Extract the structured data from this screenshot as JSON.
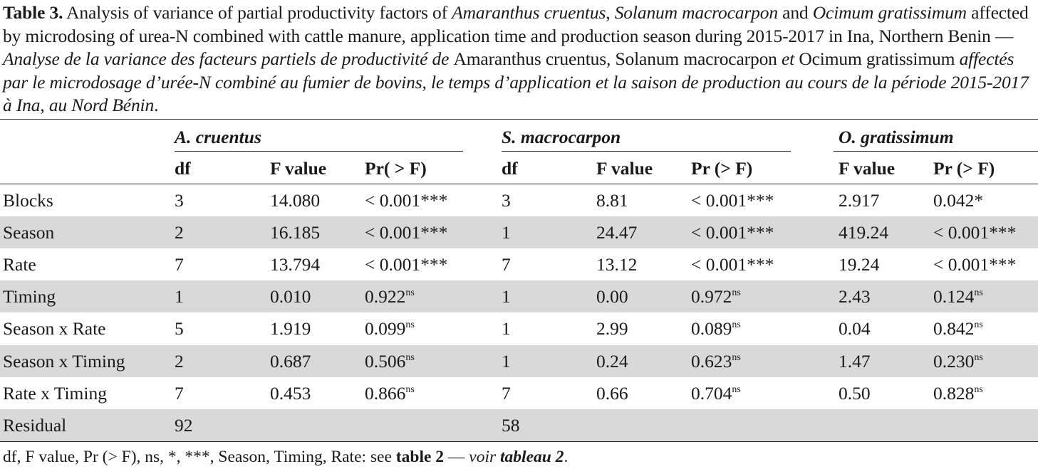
{
  "caption": {
    "label": "Table 3.",
    "en_1": " Analysis of variance of partial productivity factors of ",
    "sp_1": "Amaranthus cruentus",
    "en_2": ", ",
    "sp_2": "Solanum macrocarpon",
    "en_3": " and ",
    "sp_3": "Ocimum gratissimum",
    "en_4": " affected by microdosing of urea-N combined with cattle manure, application time and production season during 2015-2017 in Ina, Northern Benin",
    "sep": " — ",
    "fr_1": "Analyse de la variance des facteurs partiels de productivité de ",
    "fr_sp_1": "Amaranthus cruentus",
    "fr_2": ", ",
    "fr_sp_2": "Solanum macrocarpon",
    "fr_3": " et ",
    "fr_sp_3": "Ocimum gratissimum",
    "fr_4": " affectés par le microdosage d’urée-N combiné au fumier de bovins, le temps d’application et la saison de production au cours de la période 2015-2017 à Ina, au Nord Bénin",
    "end": "."
  },
  "groups": {
    "a": "A. cruentus",
    "s": "S. macrocarpon",
    "o": "O. gratissimum"
  },
  "columns": {
    "a_df": "df",
    "a_f": "F value",
    "a_p": "Pr( > F)",
    "s_df": "df",
    "s_f": "F value",
    "s_p": "Pr (> F)",
    "o_f": "F value",
    "o_p": "Pr (> F)"
  },
  "rows": [
    {
      "label": "Blocks",
      "a_df": "3",
      "a_f": "14.080",
      "a_p": "< 0.001***",
      "a_ns": "",
      "s_df": "3",
      "s_f": "8.81",
      "s_p": "< 0.001***",
      "s_ns": "",
      "o_f": "2.917",
      "o_p": "0.042*",
      "o_ns": "",
      "shaded": false
    },
    {
      "label": "Season",
      "a_df": "2",
      "a_f": "16.185",
      "a_p": "< 0.001***",
      "a_ns": "",
      "s_df": "1",
      "s_f": "24.47",
      "s_p": "< 0.001***",
      "s_ns": "",
      "o_f": "419.24",
      "o_p": "< 0.001***",
      "o_ns": "",
      "shaded": true
    },
    {
      "label": "Rate",
      "a_df": "7",
      "a_f": "13.794",
      "a_p": "< 0.001***",
      "a_ns": "",
      "s_df": "7",
      "s_f": "13.12",
      "s_p": "< 0.001***",
      "s_ns": "",
      "o_f": "19.24",
      "o_p": "< 0.001***",
      "o_ns": "",
      "shaded": false
    },
    {
      "label": "Timing",
      "a_df": "1",
      "a_f": "0.010",
      "a_p": "0.922",
      "a_ns": "ns",
      "s_df": "1",
      "s_f": "0.00",
      "s_p": "0.972",
      "s_ns": "ns",
      "o_f": "2.43",
      "o_p": "0.124",
      "o_ns": "ns",
      "shaded": true
    },
    {
      "label": "Season x Rate",
      "a_df": "5",
      "a_f": "1.919",
      "a_p": "0.099",
      "a_ns": "ns",
      "s_df": "1",
      "s_f": "2.99",
      "s_p": "0.089",
      "s_ns": "ns",
      "o_f": "0.04",
      "o_p": "0.842",
      "o_ns": "ns",
      "shaded": false
    },
    {
      "label": "Season x Timing",
      "a_df": "2",
      "a_f": "0.687",
      "a_p": "0.506",
      "a_ns": "ns",
      "s_df": "1",
      "s_f": "0.24",
      "s_p": "0.623",
      "s_ns": "ns",
      "o_f": "1.47",
      "o_p": "0.230",
      "o_ns": "ns",
      "shaded": true
    },
    {
      "label": "Rate x Timing",
      "a_df": "7",
      "a_f": "0.453",
      "a_p": "0.866",
      "a_ns": "ns",
      "s_df": "7",
      "s_f": "0.66",
      "s_p": "0.704",
      "s_ns": "ns",
      "o_f": "0.50",
      "o_p": "0.828",
      "o_ns": "ns",
      "shaded": false
    },
    {
      "label": "Residual",
      "a_df": "92",
      "a_f": "",
      "a_p": "",
      "a_ns": "",
      "s_df": "58",
      "s_f": "",
      "s_p": "",
      "s_ns": "",
      "o_f": "",
      "o_p": "",
      "o_ns": "",
      "shaded": true
    }
  ],
  "footnote": {
    "text": "df, F value, Pr (> F), ns, *, ***, Season, Timing, Rate: see ",
    "ref_en": "table 2",
    "sep": " — ",
    "voir": "voir ",
    "ref_fr": "tableau 2",
    "end": "."
  }
}
